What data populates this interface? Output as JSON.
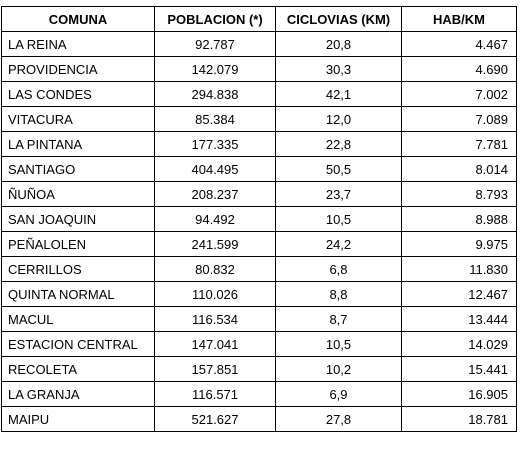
{
  "table": {
    "headers": [
      "COMUNA",
      "POBLACION (*)",
      "CICLOVIAS (KM)",
      "HAB/KM"
    ],
    "rows": [
      [
        "LA REINA",
        "92.787",
        "20,8",
        "4.467"
      ],
      [
        "PROVIDENCIA",
        "142.079",
        "30,3",
        "4.690"
      ],
      [
        "LAS CONDES",
        "294.838",
        "42,1",
        "7.002"
      ],
      [
        "VITACURA",
        "85.384",
        "12,0",
        "7.089"
      ],
      [
        "LA PINTANA",
        "177.335",
        "22,8",
        "7.781"
      ],
      [
        "SANTIAGO",
        "404.495",
        "50,5",
        "8.014"
      ],
      [
        "ÑUÑOA",
        "208.237",
        "23,7",
        "8.793"
      ],
      [
        "SAN JOAQUIN",
        "94.492",
        "10,5",
        "8.988"
      ],
      [
        "PEÑALOLEN",
        "241.599",
        "24,2",
        "9.975"
      ],
      [
        "CERRILLOS",
        "80.832",
        "6,8",
        "11.830"
      ],
      [
        "QUINTA NORMAL",
        "110.026",
        "8,8",
        "12.467"
      ],
      [
        "MACUL",
        "116.534",
        "8,7",
        "13.444"
      ],
      [
        "ESTACION CENTRAL",
        "147.041",
        "10,5",
        "14.029"
      ],
      [
        "RECOLETA",
        "157.851",
        "10,2",
        "15.441"
      ],
      [
        "LA GRANJA",
        "116.571",
        "6,9",
        "16.905"
      ],
      [
        "MAIPU",
        "521.627",
        "27,8",
        "18.781"
      ]
    ]
  }
}
